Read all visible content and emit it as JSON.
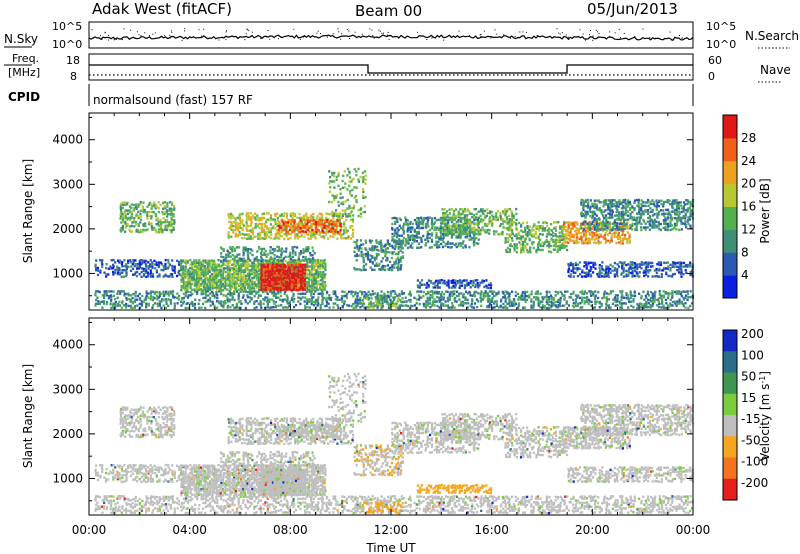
{
  "header": {
    "station": "Adak West (fitACF)",
    "beam": "Beam 00",
    "date": "05/Jun/2013"
  },
  "strip": {
    "nsky_label": "N.Sky",
    "nsky_ticks": [
      "10^5",
      "10^0"
    ],
    "nsearch_label": "N.Search",
    "freq_label_line1": "Freq.",
    "freq_label_line2": "[MHz]",
    "freq_ticks": [
      "18",
      "8"
    ],
    "nave_label": "Nave",
    "nave_ticks": [
      "60",
      "0"
    ],
    "cpid_label": "CPID",
    "cpid_text": "normalsound (fast) 157 RF"
  },
  "chart_data": [
    {
      "type": "heatmap",
      "panel": "power",
      "xlabel": "",
      "ylabel": "Slant Range [km]",
      "xlim": [
        "00:00",
        "24:00"
      ],
      "ylim": [
        180,
        4600
      ],
      "yticks": [
        "1000",
        "2000",
        "3000",
        "4000"
      ],
      "colorbar": {
        "label": "Power [dB]",
        "ticks": [
          "4",
          "8",
          "12",
          "16",
          "20",
          "24",
          "28"
        ],
        "colors": [
          "#0a1fe0",
          "#2a5ab4",
          "#3f8f78",
          "#52b04e",
          "#b8c832",
          "#f0a020",
          "#f06018",
          "#e01818"
        ]
      }
    },
    {
      "type": "heatmap",
      "panel": "velocity",
      "xlabel": "Time UT",
      "ylabel": "Slant Range [km]",
      "xlim": [
        "00:00",
        "24:00"
      ],
      "ylim": [
        180,
        4600
      ],
      "xticks": [
        "00:00",
        "04:00",
        "08:00",
        "12:00",
        "16:00",
        "20:00",
        "00:00"
      ],
      "yticks": [
        "1000",
        "2000",
        "3000",
        "4000"
      ],
      "colorbar": {
        "label": "Velocity [m s",
        "label_sup": "-1",
        "label_end": "]",
        "ticks": [
          "200",
          "100",
          "50",
          "15",
          "-15",
          "-50",
          "-100",
          "-200"
        ],
        "colors": [
          "#1428c8",
          "#2a6e8c",
          "#3e9650",
          "#7ccd3c",
          "#bebebe",
          "#f5a51e",
          "#f5731e",
          "#e61e1e"
        ]
      }
    }
  ]
}
